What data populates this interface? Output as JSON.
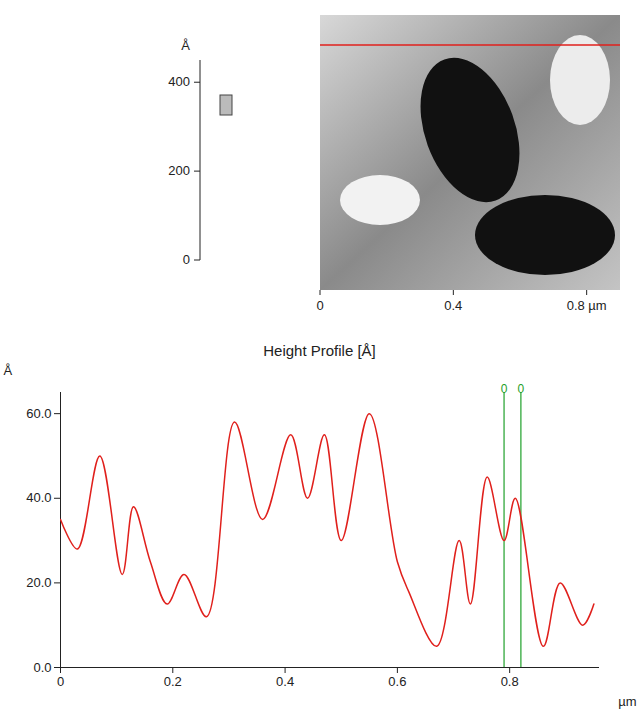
{
  "chart_data": {
    "type": "line",
    "title": "Height Profile [Å]",
    "xlabel": "µm",
    "ylabel": "Å",
    "x": [
      0,
      0.03,
      0.07,
      0.11,
      0.13,
      0.16,
      0.19,
      0.22,
      0.26,
      0.31,
      0.36,
      0.41,
      0.44,
      0.47,
      0.5,
      0.55,
      0.6,
      0.62,
      0.67,
      0.71,
      0.73,
      0.76,
      0.79,
      0.81,
      0.86,
      0.89,
      0.93,
      0.95
    ],
    "values": [
      35,
      28,
      50,
      22,
      38,
      25,
      15,
      22,
      12,
      58,
      35,
      55,
      40,
      55,
      30,
      60,
      25,
      18,
      5,
      30,
      15,
      45,
      30,
      40,
      5,
      20,
      10,
      15
    ],
    "color": "#e0201c",
    "xlim": [
      0,
      0.96
    ],
    "xticks": [
      {
        "value": 0,
        "label": "0"
      },
      0.2,
      0.4,
      0.6,
      0.8
    ],
    "ylim": [
      0,
      65
    ],
    "yticks": [
      {
        "value": 0,
        "label": "0.0"
      },
      {
        "value": 20,
        "label": "20.0"
      },
      {
        "value": 40,
        "label": "40.0"
      },
      {
        "value": 60,
        "label": "60.0"
      }
    ],
    "cursors": [
      0.79,
      0.82
    ],
    "cursor_labels": [
      "0",
      "0"
    ],
    "cursor_color": "#1fa02a",
    "grid": false
  },
  "afm_image": {
    "xlim": [
      0,
      0.9
    ],
    "xticks": [
      {
        "value": 0,
        "label": "0"
      },
      0.4,
      {
        "value": 0.8,
        "label": "0.8 µm"
      }
    ],
    "scale_bar": {
      "unit": "Å",
      "ylim": [
        0,
        450
      ],
      "ticks": [
        0,
        200,
        400
      ]
    },
    "line_color": "#e0201c"
  }
}
